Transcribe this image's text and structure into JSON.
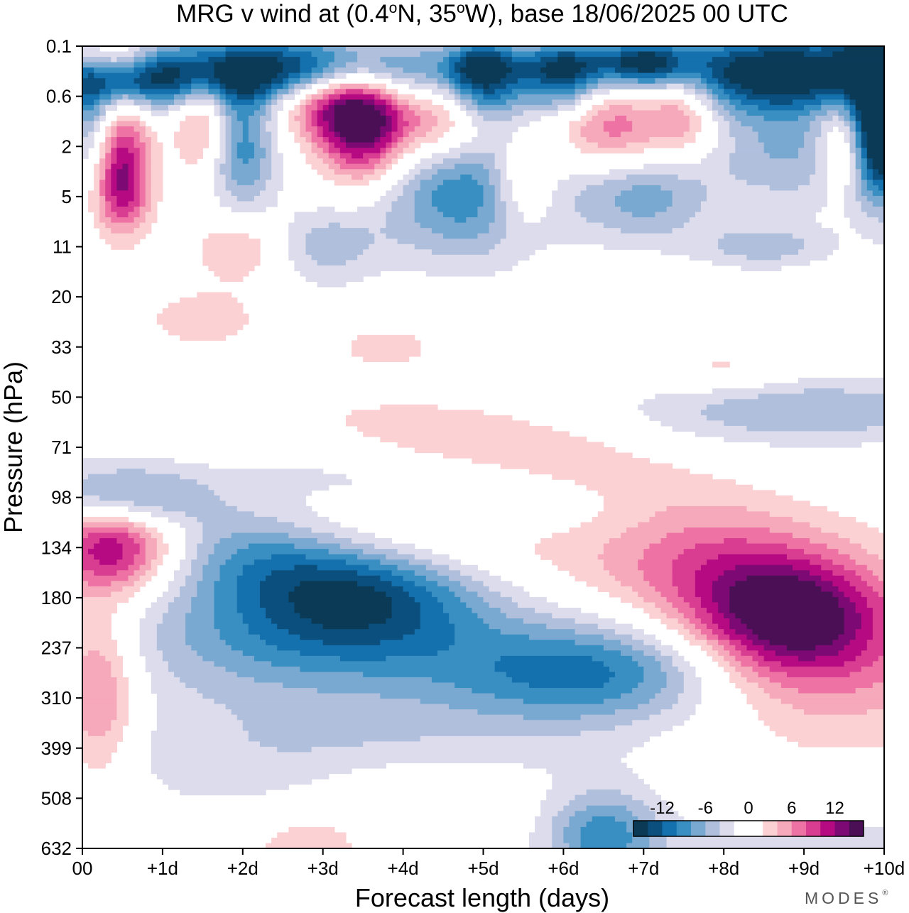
{
  "chart_data": {
    "type": "heatmap",
    "title": "MRG v wind at (0.4°N, 35°W),  base 18/06/2025  00 UTC",
    "title_parts": {
      "pre": "MRG v wind at (0.4",
      "deg1": "o",
      "mid": "N, 35",
      "deg2": "o",
      "post": "W),  base 18/06/2025  00 UTC"
    },
    "xlabel": "Forecast length (days)",
    "ylabel": "Pressure (hPa)",
    "x_ticks": [
      "00",
      "+1d",
      "+2d",
      "+3d",
      "+4d",
      "+5d",
      "+6d",
      "+7d",
      "+8d",
      "+9d",
      "+10d"
    ],
    "xlim": [
      0,
      10
    ],
    "y_ticks": [
      "0.1",
      "0.6",
      "2",
      "5",
      "11",
      "20",
      "33",
      "50",
      "71",
      "98",
      "134",
      "180",
      "237",
      "310",
      "399",
      "508",
      "632"
    ],
    "ylim": [
      632,
      0.1
    ],
    "y_axis_layout": "tick labels evenly spaced, top to bottom",
    "colorbar": {
      "labels": [
        "-12",
        "-6",
        "0",
        "6",
        "12"
      ],
      "label_values": [
        -12,
        -6,
        0,
        6,
        12
      ],
      "min": -16,
      "max": 16,
      "colors": [
        "#0b3a57",
        "#0b4f7e",
        "#1471ad",
        "#3a8fc2",
        "#79a9d1",
        "#afbfdc",
        "#dcdcec",
        "#ffffff",
        "#ffffff",
        "#fbd1d4",
        "#f6a9ba",
        "#ee73a4",
        "#d93d91",
        "#b60a83",
        "#7d0a74",
        "#4a0f55"
      ],
      "placement": "bottom-right inside plot"
    },
    "levels": [
      {
        "lo": -16,
        "hi": -14,
        "color": "#0b3a57"
      },
      {
        "lo": -14,
        "hi": -12,
        "color": "#0b4f7e"
      },
      {
        "lo": -12,
        "hi": -10,
        "color": "#1471ad"
      },
      {
        "lo": -10,
        "hi": -8,
        "color": "#3a8fc2"
      },
      {
        "lo": -8,
        "hi": -6,
        "color": "#79a9d1"
      },
      {
        "lo": -6,
        "hi": -4,
        "color": "#afbfdc"
      },
      {
        "lo": -4,
        "hi": -2,
        "color": "#dcdcec"
      },
      {
        "lo": 2,
        "hi": 4,
        "color": "#fbd1d4"
      },
      {
        "lo": 4,
        "hi": 6,
        "color": "#f6a9ba"
      },
      {
        "lo": 6,
        "hi": 8,
        "color": "#ee73a4"
      },
      {
        "lo": 8,
        "hi": 10,
        "color": "#d93d91"
      },
      {
        "lo": 10,
        "hi": 12,
        "color": "#b60a83"
      },
      {
        "lo": 12,
        "hi": 14,
        "color": "#7d0a74"
      },
      {
        "lo": 14,
        "hi": 16,
        "color": "#4a0f55"
      }
    ],
    "field_units": "m/s (v wind)",
    "features": [
      {
        "day": 0.4,
        "p": 0.15,
        "v": 11,
        "sx": 0.5,
        "sy": 0.02,
        "tilt": 0
      },
      {
        "day": 0.5,
        "p": 0.25,
        "v": -15,
        "sx": 0.8,
        "sy": 0.03,
        "tilt": 0
      },
      {
        "day": 2.8,
        "p": 0.25,
        "v": -17,
        "sx": 1.3,
        "sy": 0.03,
        "tilt": 0
      },
      {
        "day": 5.0,
        "p": 0.18,
        "v": -8,
        "sx": 0.3,
        "sy": 0.02,
        "tilt": 0
      },
      {
        "day": 5.0,
        "p": 0.45,
        "v": -9,
        "sx": 0.35,
        "sy": 0.03,
        "tilt": 0
      },
      {
        "day": 6.0,
        "p": 0.18,
        "v": -10,
        "sx": 0.4,
        "sy": 0.02,
        "tilt": 0
      },
      {
        "day": 6.0,
        "p": 0.45,
        "v": -8,
        "sx": 0.35,
        "sy": 0.025,
        "tilt": 0
      },
      {
        "day": 7.0,
        "p": 0.18,
        "v": -12,
        "sx": 0.4,
        "sy": 0.02,
        "tilt": 0
      },
      {
        "day": 8.7,
        "p": 0.25,
        "v": -17,
        "sx": 1.1,
        "sy": 0.035,
        "tilt": 0
      },
      {
        "day": 10.0,
        "p": 0.45,
        "v": -14,
        "sx": 0.35,
        "sy": 0.08,
        "tilt": 0
      },
      {
        "day": 10.0,
        "p": 1.5,
        "v": -10,
        "sx": 0.25,
        "sy": 0.06,
        "tilt": 0
      },
      {
        "day": 0.1,
        "p": 1.2,
        "v": -6,
        "sx": 0.2,
        "sy": 0.05,
        "tilt": 0
      },
      {
        "day": 3.0,
        "p": 0.6,
        "v": 10,
        "sx": 0.5,
        "sy": 0.03,
        "tilt": 0
      },
      {
        "day": 3.5,
        "p": 1.1,
        "v": 17,
        "sx": 0.4,
        "sy": 0.05,
        "tilt": 0
      },
      {
        "day": 1.5,
        "p": 0.9,
        "v": 7,
        "sx": 0.25,
        "sy": 0.05,
        "tilt": 0
      },
      {
        "day": 0.5,
        "p": 2.0,
        "v": 8,
        "sx": 0.25,
        "sy": 0.06,
        "tilt": 0
      },
      {
        "day": 0.5,
        "p": 4.5,
        "v": 7,
        "sx": 0.25,
        "sy": 0.04,
        "tilt": 0
      },
      {
        "day": 2.0,
        "p": 2.0,
        "v": -9,
        "sx": 0.3,
        "sy": 0.06,
        "tilt": 0
      },
      {
        "day": 4.5,
        "p": 1.0,
        "v": 8,
        "sx": 0.4,
        "sy": 0.04,
        "tilt": 0
      },
      {
        "day": 5.5,
        "p": 4.0,
        "v": 7,
        "sx": 0.3,
        "sy": 0.04,
        "tilt": 0
      },
      {
        "day": 6.6,
        "p": 1.2,
        "v": 8,
        "sx": 0.5,
        "sy": 0.04,
        "tilt": 0
      },
      {
        "day": 7.5,
        "p": 0.8,
        "v": 7,
        "sx": 0.3,
        "sy": 0.04,
        "tilt": 0
      },
      {
        "day": 9.5,
        "p": 1.0,
        "v": 5,
        "sx": 0.25,
        "sy": 0.03,
        "tilt": 0
      },
      {
        "day": 9.5,
        "p": 2.5,
        "v": 6,
        "sx": 0.2,
        "sy": 0.03,
        "tilt": 0
      },
      {
        "day": 4.8,
        "p": 4.5,
        "v": -10,
        "sx": 0.8,
        "sy": 0.06,
        "tilt": 0
      },
      {
        "day": 8.8,
        "p": 2.2,
        "v": -6,
        "sx": 0.7,
        "sy": 0.05,
        "tilt": 0
      },
      {
        "day": 7.0,
        "p": 5.0,
        "v": -7,
        "sx": 0.6,
        "sy": 0.04,
        "tilt": 0
      },
      {
        "day": 3.0,
        "p": 11,
        "v": -5,
        "sx": 0.5,
        "sy": 0.035,
        "tilt": 0
      },
      {
        "day": 2.0,
        "p": 11,
        "v": 5,
        "sx": 0.4,
        "sy": 0.03,
        "tilt": 0
      },
      {
        "day": 8.5,
        "p": 11,
        "v": -5,
        "sx": 0.6,
        "sy": 0.02,
        "tilt": 0
      },
      {
        "day": 1.5,
        "p": 25,
        "v": 3,
        "sx": 0.6,
        "sy": 0.03,
        "tilt": 0
      },
      {
        "day": 3.8,
        "p": 33,
        "v": 3,
        "sx": 0.5,
        "sy": 0.02,
        "tilt": 0
      },
      {
        "day": 8.0,
        "p": 40,
        "v": 3,
        "sx": 0.6,
        "sy": 0.02,
        "tilt": 0
      },
      {
        "day": 9.0,
        "p": 55,
        "v": -6,
        "sx": 1.5,
        "sy": 0.03,
        "tilt": 0
      },
      {
        "day": 5.6,
        "p": 80,
        "v": 8,
        "sx": 1.8,
        "sy": 0.04,
        "tilt": 0.15
      },
      {
        "day": 4.0,
        "p": 85,
        "v": -5,
        "sx": 2.5,
        "sy": 0.04,
        "tilt": 0.04
      },
      {
        "day": 5.0,
        "p": 98,
        "v": -8,
        "sx": 1.5,
        "sy": 0.04,
        "tilt": 0.04
      },
      {
        "day": 3.8,
        "p": 110,
        "v": 10,
        "sx": 2.0,
        "sy": 0.05,
        "tilt": 0.03
      },
      {
        "day": 1.2,
        "p": 98,
        "v": 6,
        "sx": 0.8,
        "sy": 0.04,
        "tilt": 0.0
      },
      {
        "day": 0.7,
        "p": 98,
        "v": -12,
        "sx": 0.8,
        "sy": 0.03,
        "tilt": 0
      },
      {
        "day": 2.0,
        "p": 125,
        "v": -10,
        "sx": 1.0,
        "sy": 0.05,
        "tilt": 0.04
      },
      {
        "day": 0.4,
        "p": 134,
        "v": 12,
        "sx": 0.55,
        "sy": 0.04,
        "tilt": 0
      },
      {
        "day": 3.5,
        "p": 170,
        "v": -12,
        "sx": 1.1,
        "sy": 0.05,
        "tilt": 0
      },
      {
        "day": 2.8,
        "p": 230,
        "v": -7,
        "sx": 1.8,
        "sy": 0.05,
        "tilt": 0.02
      },
      {
        "day": 6.4,
        "p": 270,
        "v": -10,
        "sx": 1.3,
        "sy": 0.045,
        "tilt": 0
      },
      {
        "day": 8.8,
        "p": 200,
        "v": 13,
        "sx": 0.8,
        "sy": 0.05,
        "tilt": 0
      },
      {
        "day": 9.3,
        "p": 250,
        "v": 6,
        "sx": 1.3,
        "sy": 0.08,
        "tilt": 0
      },
      {
        "day": 7.8,
        "p": 150,
        "v": 6,
        "sx": 1.0,
        "sy": 0.05,
        "tilt": 0
      },
      {
        "day": 0.2,
        "p": 300,
        "v": 8,
        "sx": 0.35,
        "sy": 0.08,
        "tilt": 0
      },
      {
        "day": 3.0,
        "p": 400,
        "v": -4,
        "sx": 2.5,
        "sy": 0.06,
        "tilt": 0
      },
      {
        "day": 4.2,
        "p": 500,
        "v": 4,
        "sx": 0.9,
        "sy": 0.03,
        "tilt": 0
      },
      {
        "day": 6.5,
        "p": 600,
        "v": -9,
        "sx": 0.5,
        "sy": 0.04,
        "tilt": 0
      },
      {
        "day": 2.8,
        "p": 632,
        "v": 4,
        "sx": 0.5,
        "sy": 0.03,
        "tilt": 0
      },
      {
        "day": 9.0,
        "p": 632,
        "v": -4,
        "sx": 1.2,
        "sy": 0.03,
        "tilt": 0
      }
    ]
  },
  "branding": {
    "logo": "MODES",
    "logo_mark": "®"
  }
}
